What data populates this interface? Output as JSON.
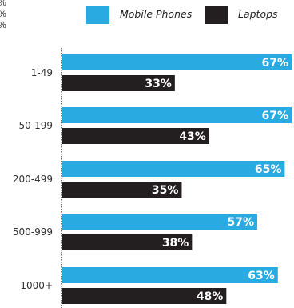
{
  "clipped_labels": [
    "%",
    "%",
    "%"
  ],
  "chart_data": {
    "type": "bar",
    "orientation": "horizontal",
    "categories": [
      "1-49",
      "50-199",
      "200-499",
      "500-999",
      "1000+"
    ],
    "series": [
      {
        "name": "Mobile Phones",
        "values": [
          67,
          67,
          65,
          57,
          63
        ],
        "color": "#29abe2"
      },
      {
        "name": "Laptops",
        "values": [
          33,
          43,
          35,
          38,
          48
        ],
        "color": "#231f20"
      }
    ],
    "value_suffix": "%",
    "xlim": [
      0,
      67
    ],
    "legend_position": "top-right",
    "grid": false
  }
}
